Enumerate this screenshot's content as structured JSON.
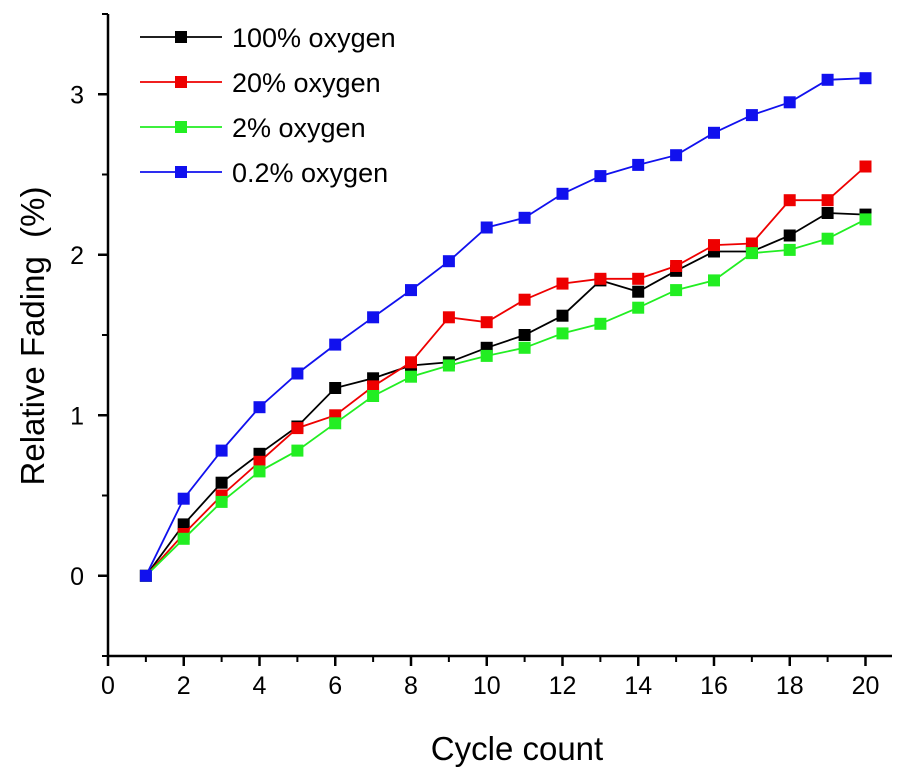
{
  "chart_data": {
    "type": "line",
    "title": "",
    "xlabel": "Cycle count",
    "ylabel": "Relative Fading  (%)",
    "xlim": [
      0,
      20.7
    ],
    "ylim": [
      -0.5,
      3.5
    ],
    "xticks": [
      0,
      2,
      4,
      6,
      8,
      10,
      12,
      14,
      16,
      18,
      20
    ],
    "xtick_labels": [
      "0",
      "2",
      "4",
      "6",
      "8",
      "10",
      "12",
      "14",
      "16",
      "18",
      "20"
    ],
    "yticks": [
      0,
      1,
      2,
      3
    ],
    "ytick_labels": [
      "0",
      "1",
      "2",
      "3"
    ],
    "grid": false,
    "legend_position": "top-left",
    "x": [
      1,
      2,
      3,
      4,
      5,
      6,
      7,
      8,
      9,
      10,
      11,
      12,
      13,
      14,
      15,
      16,
      17,
      18,
      19,
      20
    ],
    "series": [
      {
        "name": "100% oxygen",
        "color": "#000000",
        "marker": "square",
        "values": [
          0,
          0.32,
          0.58,
          0.76,
          0.93,
          1.17,
          1.23,
          1.31,
          1.33,
          1.42,
          1.5,
          1.62,
          1.84,
          1.77,
          1.9,
          2.02,
          2.02,
          2.12,
          2.26,
          2.25
        ]
      },
      {
        "name": "20% oxygen",
        "color": "#ee0000",
        "marker": "square",
        "values": [
          0,
          0.26,
          0.5,
          0.71,
          0.92,
          1.0,
          1.18,
          1.33,
          1.61,
          1.58,
          1.72,
          1.82,
          1.85,
          1.85,
          1.93,
          2.06,
          2.07,
          2.34,
          2.34,
          2.55
        ]
      },
      {
        "name": "2% oxygen",
        "color": "#22ee22",
        "marker": "square",
        "values": [
          0,
          0.23,
          0.46,
          0.65,
          0.78,
          0.95,
          1.12,
          1.24,
          1.31,
          1.37,
          1.42,
          1.51,
          1.57,
          1.67,
          1.78,
          1.84,
          2.01,
          2.03,
          2.1,
          2.22
        ]
      },
      {
        "name": "0.2% oxygen",
        "color": "#1111ee",
        "marker": "square",
        "values": [
          0,
          0.48,
          0.78,
          1.05,
          1.26,
          1.44,
          1.61,
          1.78,
          1.96,
          2.17,
          2.23,
          2.38,
          2.49,
          2.56,
          2.62,
          2.76,
          2.87,
          2.95,
          3.09,
          3.1
        ]
      }
    ]
  }
}
